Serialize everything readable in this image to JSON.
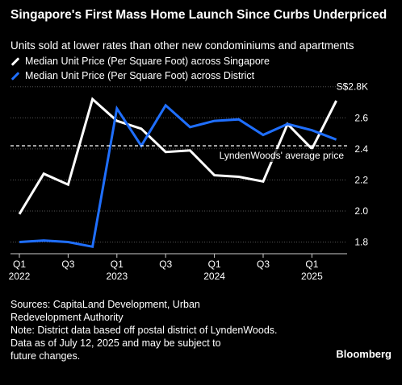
{
  "title": "Singapore's First Mass Home Launch Since Curbs Underpriced",
  "subtitle": "Units sold at lower rates than other new condominiums and apartments",
  "sources": [
    "Sources: CapitaLand Development, Urban",
    "Redevelopment Authority",
    "Note: District data based off postal district of LyndenWoods.",
    "Data as of July 12, 2025 and may be subject to",
    "future changes."
  ],
  "brand": "Bloomberg",
  "colors": {
    "singapore": "#ffffff",
    "district": "#1f6fff",
    "background": "#000000",
    "grid": "#555555"
  },
  "chart_data": {
    "type": "line",
    "title": "Singapore's First Mass Home Launch Since Curbs Underpriced",
    "subtitle": "Units sold at lower rates than other new condominiums and apartments",
    "unit_label": "S$2.8K",
    "x": [
      "2022-Q1",
      "2022-Q2",
      "2022-Q3",
      "2022-Q4",
      "2023-Q1",
      "2023-Q2",
      "2023-Q3",
      "2023-Q4",
      "2024-Q1",
      "2024-Q2",
      "2024-Q3",
      "2024-Q4",
      "2025-Q1",
      "2025-Q2"
    ],
    "x_ticks": [
      {
        "index": 0,
        "label": "Q1",
        "year": "2022"
      },
      {
        "index": 2,
        "label": "Q3",
        "year": ""
      },
      {
        "index": 4,
        "label": "Q1",
        "year": "2023"
      },
      {
        "index": 6,
        "label": "Q3",
        "year": ""
      },
      {
        "index": 8,
        "label": "Q1",
        "year": "2024"
      },
      {
        "index": 10,
        "label": "Q3",
        "year": ""
      },
      {
        "index": 12,
        "label": "Q1",
        "year": "2025"
      }
    ],
    "y_ticks": [
      {
        "value": 1.8,
        "label": "1.8"
      },
      {
        "value": 2.0,
        "label": "2.0"
      },
      {
        "value": 2.2,
        "label": "2.2"
      },
      {
        "value": 2.4,
        "label": "2.4"
      },
      {
        "value": 2.6,
        "label": "2.6"
      },
      {
        "value": 2.8,
        "label": "S$2.8K"
      }
    ],
    "ylim": [
      1.73,
      2.84
    ],
    "grid": true,
    "series": [
      {
        "name": "Median Unit Price (Per Square Foot) across Singapore",
        "key": "singapore",
        "values": [
          1.98,
          2.24,
          2.17,
          2.72,
          2.58,
          2.53,
          2.38,
          2.39,
          2.23,
          2.22,
          2.19,
          2.56,
          2.4,
          2.71
        ]
      },
      {
        "name": "Median Unit Price (Per Square Foot) across District",
        "key": "district",
        "values": [
          1.8,
          1.81,
          1.8,
          1.77,
          2.66,
          2.42,
          2.68,
          2.54,
          2.58,
          2.59,
          2.49,
          2.56,
          2.52,
          2.46
        ]
      }
    ],
    "reference_line": {
      "value": 2.42,
      "label": "LyndenWoods' average price"
    }
  }
}
